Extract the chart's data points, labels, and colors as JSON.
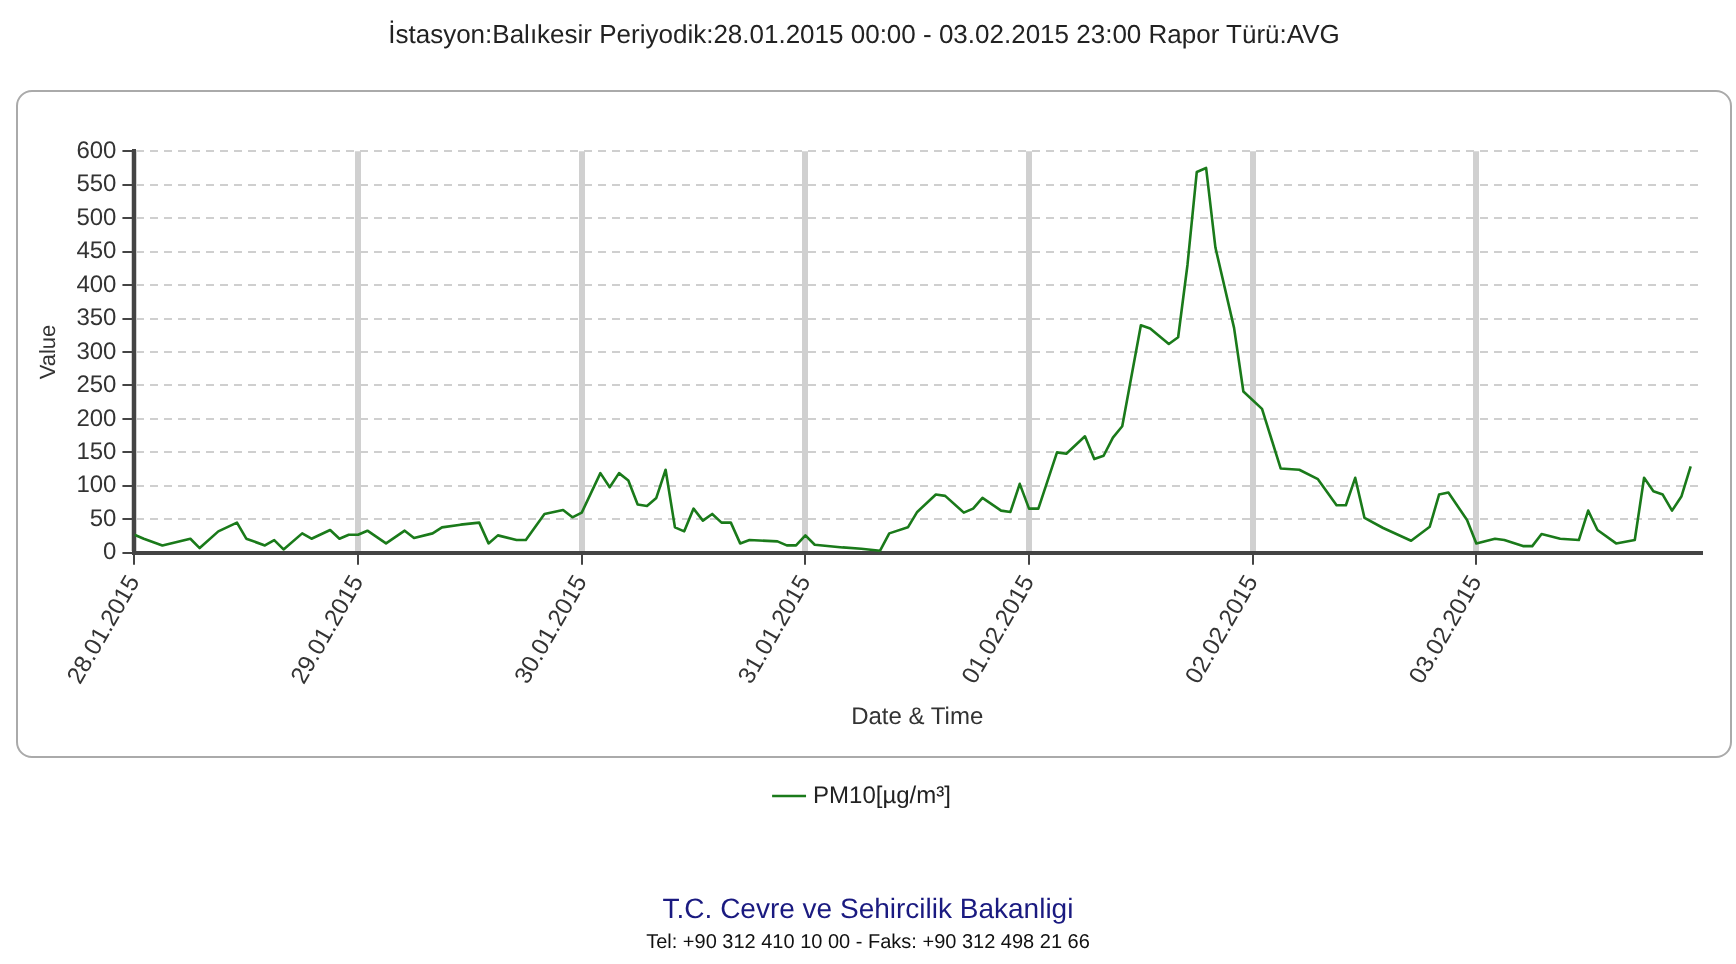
{
  "chart_data": {
    "type": "line",
    "title": "İstasyon:Balıkesir Periyodik:28.01.2015 00:00 - 03.02.2015 23:00 Rapor Türü:AVG",
    "xlabel": "Date & Time",
    "ylabel": "Value",
    "xlim": [
      "2015-01-28T00:00",
      "2015-02-04T00:00"
    ],
    "xticks": [
      {
        "value": "2015-01-28",
        "label": "28.01.2015"
      },
      {
        "value": "2015-01-29",
        "label": "29.01.2015"
      },
      {
        "value": "2015-01-30",
        "label": "30.01.2015"
      },
      {
        "value": "2015-01-31",
        "label": "31.01.2015"
      },
      {
        "value": "2015-02-01",
        "label": "01.02.2015"
      },
      {
        "value": "2015-02-02",
        "label": "02.02.2015"
      },
      {
        "value": "2015-02-03",
        "label": "03.02.2015"
      }
    ],
    "ylim": [
      0,
      600
    ],
    "yticks": [
      0,
      50,
      100,
      150,
      200,
      250,
      300,
      350,
      400,
      450,
      500,
      550,
      600
    ],
    "grid": true,
    "legend": "bottom",
    "marker": "none",
    "line_style": "solid",
    "series": [
      {
        "name": "PM10[µg/m³]",
        "color": "#1a7a1a",
        "x": [
          "2015-01-28T00:00",
          "2015-01-28T01:00",
          "2015-01-28T03:00",
          "2015-01-28T06:00",
          "2015-01-28T07:00",
          "2015-01-28T09:00",
          "2015-01-28T11:00",
          "2015-01-28T12:00",
          "2015-01-28T14:00",
          "2015-01-28T15:00",
          "2015-01-28T16:00",
          "2015-01-28T18:00",
          "2015-01-28T19:00",
          "2015-01-28T21:00",
          "2015-01-28T22:00",
          "2015-01-28T23:00",
          "2015-01-29T00:00",
          "2015-01-29T01:00",
          "2015-01-29T03:00",
          "2015-01-29T05:00",
          "2015-01-29T06:00",
          "2015-01-29T08:00",
          "2015-01-29T09:00",
          "2015-01-29T11:00",
          "2015-01-29T13:00",
          "2015-01-29T14:00",
          "2015-01-29T15:00",
          "2015-01-29T17:00",
          "2015-01-29T18:00",
          "2015-01-29T20:00",
          "2015-01-29T22:00",
          "2015-01-29T23:00",
          "2015-01-30T00:00",
          "2015-01-30T02:00",
          "2015-01-30T03:00",
          "2015-01-30T04:00",
          "2015-01-30T05:00",
          "2015-01-30T06:00",
          "2015-01-30T07:00",
          "2015-01-30T08:00",
          "2015-01-30T09:00",
          "2015-01-30T10:00",
          "2015-01-30T11:00",
          "2015-01-30T12:00",
          "2015-01-30T13:00",
          "2015-01-30T14:00",
          "2015-01-30T15:00",
          "2015-01-30T16:00",
          "2015-01-30T17:00",
          "2015-01-30T18:00",
          "2015-01-30T21:00",
          "2015-01-30T22:00",
          "2015-01-30T23:00",
          "2015-01-31T00:00",
          "2015-01-31T01:00",
          "2015-01-31T04:00",
          "2015-01-31T06:00",
          "2015-01-31T08:00",
          "2015-01-31T09:00",
          "2015-01-31T11:00",
          "2015-01-31T12:00",
          "2015-01-31T14:00",
          "2015-01-31T15:00",
          "2015-01-31T17:00",
          "2015-01-31T18:00",
          "2015-01-31T19:00",
          "2015-01-31T21:00",
          "2015-01-31T22:00",
          "2015-01-31T23:00",
          "2015-02-01T00:00",
          "2015-02-01T01:00",
          "2015-02-01T03:00",
          "2015-02-01T04:00",
          "2015-02-01T06:00",
          "2015-02-01T07:00",
          "2015-02-01T08:00",
          "2015-02-01T09:00",
          "2015-02-01T10:00",
          "2015-02-01T12:00",
          "2015-02-01T13:00",
          "2015-02-01T15:00",
          "2015-02-01T16:00",
          "2015-02-01T17:00",
          "2015-02-01T18:00",
          "2015-02-01T19:00",
          "2015-02-01T20:00",
          "2015-02-01T22:00",
          "2015-02-01T23:00",
          "2015-02-02T01:00",
          "2015-02-02T03:00",
          "2015-02-02T05:00",
          "2015-02-02T07:00",
          "2015-02-02T09:00",
          "2015-02-02T10:00",
          "2015-02-02T11:00",
          "2015-02-02T12:00",
          "2015-02-02T14:00",
          "2015-02-02T17:00",
          "2015-02-02T19:00",
          "2015-02-02T20:00",
          "2015-02-02T21:00",
          "2015-02-02T23:00",
          "2015-02-03T00:00",
          "2015-02-03T02:00",
          "2015-02-03T03:00",
          "2015-02-03T05:00",
          "2015-02-03T06:00",
          "2015-02-03T07:00",
          "2015-02-03T09:00",
          "2015-02-03T11:00",
          "2015-02-03T12:00",
          "2015-02-03T13:00",
          "2015-02-03T15:00",
          "2015-02-03T17:00",
          "2015-02-03T18:00",
          "2015-02-03T19:00",
          "2015-02-03T20:00",
          "2015-02-03T21:00",
          "2015-02-03T22:00",
          "2015-02-03T23:00"
        ],
        "values": [
          27,
          21,
          11,
          21,
          7,
          32,
          45,
          21,
          11,
          19,
          5,
          29,
          21,
          34,
          21,
          27,
          27,
          33,
          14,
          33,
          22,
          29,
          38,
          42,
          45,
          14,
          26,
          19,
          19,
          58,
          64,
          53,
          60,
          119,
          98,
          119,
          108,
          72,
          70,
          82,
          124,
          38,
          32,
          66,
          48,
          58,
          45,
          45,
          14,
          19,
          17,
          11,
          11,
          26,
          12,
          8,
          6,
          3,
          29,
          38,
          61,
          87,
          85,
          60,
          66,
          82,
          63,
          61,
          103,
          66,
          66,
          150,
          148,
          174,
          140,
          145,
          172,
          189,
          340,
          335,
          312,
          322,
          430,
          569,
          575,
          456,
          336,
          241,
          215,
          126,
          124,
          110,
          71,
          71,
          112,
          52,
          37,
          18,
          39,
          87,
          90,
          49,
          14,
          21,
          19,
          10,
          10,
          28,
          21,
          19,
          63,
          34,
          14,
          19,
          112,
          92,
          87,
          63,
          84,
          129
        ]
      }
    ],
    "annotations": [
      "T.C. Cevre ve Sehircilik Bakanligi",
      "Tel: +90 312 410 10 00 - Faks: +90 312 498 21 66"
    ]
  }
}
